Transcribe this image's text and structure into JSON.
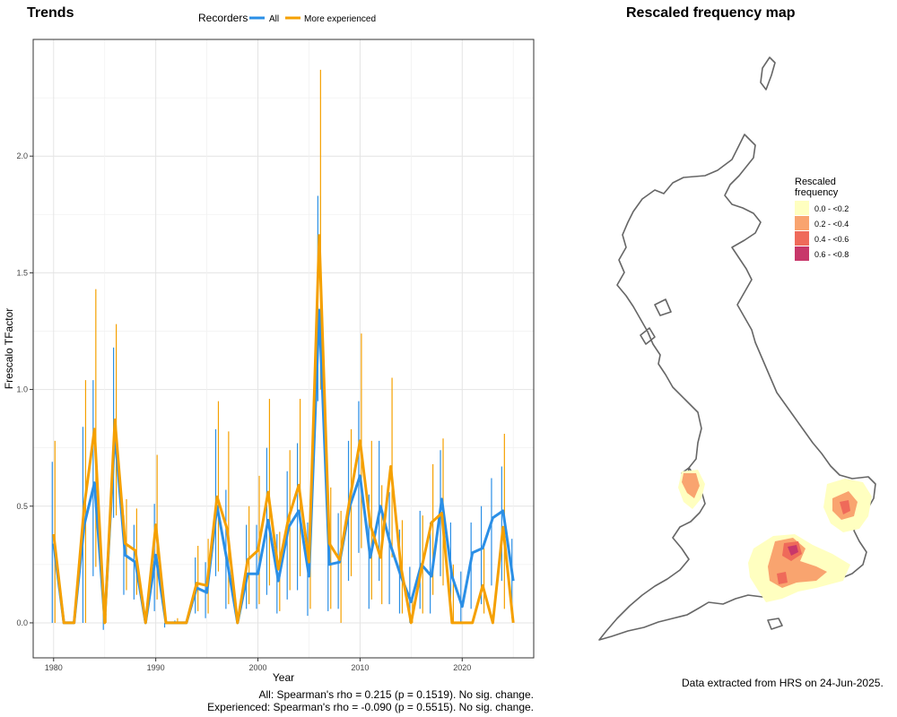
{
  "trends": {
    "title": "Trends",
    "legend": {
      "title": "Recorders",
      "items": [
        {
          "label": "All",
          "color": "#2b8fe6"
        },
        {
          "label": "More experienced",
          "color": "#f5a000"
        }
      ]
    },
    "stats": [
      "All: Spearman's rho = 0.215 (p = 0.1519). No sig. change.",
      "Experienced: Spearman's rho = -0.090 (p = 0.5515). No sig. change."
    ]
  },
  "map": {
    "title": "Rescaled frequency map",
    "legend": {
      "title": "Rescaled frequency",
      "items": [
        {
          "label": "0.0 - <0.2",
          "color": "#ffffc0"
        },
        {
          "label": "0.2 - <0.4",
          "color": "#f9a46f"
        },
        {
          "label": "0.4 - <0.6",
          "color": "#ef6a5a"
        },
        {
          "label": "0.6 - <0.8",
          "color": "#c8376a"
        }
      ]
    },
    "footer": "Data extracted from HRS on 24-Jun-2025."
  },
  "chart_data": {
    "type": "line",
    "xlabel": "Year",
    "ylabel": "Frescalo TFactor",
    "xlim": [
      1978,
      2027
    ],
    "ylim": [
      -0.15,
      2.5
    ],
    "xticks": [
      1980,
      1990,
      2000,
      2010,
      2020
    ],
    "yticks": [
      "0.0",
      "0.5",
      "1.0",
      "1.5",
      "2.0"
    ],
    "grid": true,
    "legend_position": "top",
    "x": [
      1980,
      1981,
      1982,
      1983,
      1984,
      1985,
      1986,
      1987,
      1988,
      1989,
      1990,
      1991,
      1992,
      1993,
      1994,
      1995,
      1996,
      1997,
      1998,
      1999,
      2000,
      2001,
      2002,
      2003,
      2004,
      2005,
      2006,
      2007,
      2008,
      2009,
      2010,
      2011,
      2012,
      2013,
      2014,
      2015,
      2016,
      2017,
      2018,
      2019,
      2020,
      2021,
      2022,
      2023,
      2024,
      2025
    ],
    "series": [
      {
        "name": "All",
        "color": "#2b8fe6",
        "values": [
          0.34,
          0.0,
          0.0,
          0.42,
          0.6,
          0.01,
          0.81,
          0.29,
          0.26,
          0.0,
          0.29,
          0.0,
          0.0,
          0.0,
          0.15,
          0.13,
          0.5,
          0.26,
          0.0,
          0.21,
          0.21,
          0.44,
          0.18,
          0.41,
          0.48,
          0.2,
          1.34,
          0.25,
          0.26,
          0.5,
          0.63,
          0.28,
          0.5,
          0.33,
          0.2,
          0.09,
          0.25,
          0.2,
          0.53,
          0.2,
          0.07,
          0.3,
          0.32,
          0.45,
          0.48,
          0.18
        ],
        "error_low": [
          0.0,
          0.0,
          0.0,
          0.0,
          0.2,
          -0.03,
          0.45,
          0.12,
          0.1,
          0.0,
          0.05,
          -0.02,
          0.0,
          0.0,
          0.04,
          0.02,
          0.2,
          0.06,
          0.0,
          0.06,
          0.06,
          0.12,
          0.04,
          0.1,
          0.14,
          0.03,
          0.95,
          0.05,
          0.06,
          0.18,
          0.3,
          0.06,
          0.18,
          0.08,
          0.04,
          0.0,
          0.06,
          0.04,
          0.2,
          0.04,
          0.0,
          0.06,
          0.08,
          0.16,
          0.18,
          0.02
        ],
        "error_high": [
          0.69,
          0.0,
          0.0,
          0.84,
          1.04,
          0.06,
          1.18,
          0.46,
          0.42,
          0.0,
          0.51,
          0.0,
          0.01,
          0.0,
          0.28,
          0.26,
          0.83,
          0.57,
          0.0,
          0.42,
          0.42,
          0.75,
          0.38,
          0.65,
          0.77,
          0.43,
          1.83,
          0.46,
          0.47,
          0.78,
          0.95,
          0.55,
          0.78,
          0.56,
          0.4,
          0.24,
          0.48,
          0.43,
          0.74,
          0.43,
          0.22,
          0.43,
          0.5,
          0.62,
          0.67,
          0.36
        ]
      },
      {
        "name": "More experienced",
        "color": "#f5a000",
        "values": [
          0.38,
          0.0,
          0.0,
          0.5,
          0.83,
          0.0,
          0.87,
          0.34,
          0.31,
          0.0,
          0.42,
          0.0,
          0.0,
          0.0,
          0.17,
          0.16,
          0.54,
          0.4,
          0.0,
          0.27,
          0.31,
          0.56,
          0.23,
          0.45,
          0.59,
          0.26,
          1.66,
          0.34,
          0.27,
          0.53,
          0.78,
          0.42,
          0.28,
          0.67,
          0.24,
          0.0,
          0.23,
          0.43,
          0.47,
          0.0,
          0.0,
          0.0,
          0.16,
          0.0,
          0.41,
          0.0
        ],
        "error_low": [
          0.0,
          0.0,
          0.0,
          0.0,
          0.24,
          0.0,
          0.46,
          0.14,
          0.12,
          0.0,
          0.1,
          0.0,
          0.0,
          0.0,
          0.05,
          0.04,
          0.22,
          0.08,
          0.0,
          0.08,
          0.08,
          0.16,
          0.05,
          0.14,
          0.2,
          0.06,
          1.0,
          0.06,
          0.0,
          0.2,
          0.32,
          0.1,
          0.08,
          0.28,
          0.04,
          0.0,
          0.04,
          0.12,
          0.16,
          0.0,
          0.0,
          0.0,
          0.04,
          0.0,
          0.06,
          0.0
        ],
        "error_high": [
          0.78,
          0.0,
          0.0,
          1.04,
          1.43,
          0.04,
          1.28,
          0.53,
          0.49,
          0.0,
          0.72,
          0.0,
          0.02,
          0.0,
          0.33,
          0.36,
          0.95,
          0.82,
          0.0,
          0.5,
          0.63,
          0.96,
          0.39,
          0.74,
          0.96,
          0.53,
          2.37,
          0.58,
          0.48,
          0.83,
          1.24,
          0.78,
          0.59,
          1.05,
          0.44,
          0.12,
          0.46,
          0.68,
          0.79,
          0.25,
          0.0,
          0.0,
          0.32,
          0.0,
          0.81,
          0.0
        ]
      }
    ]
  }
}
